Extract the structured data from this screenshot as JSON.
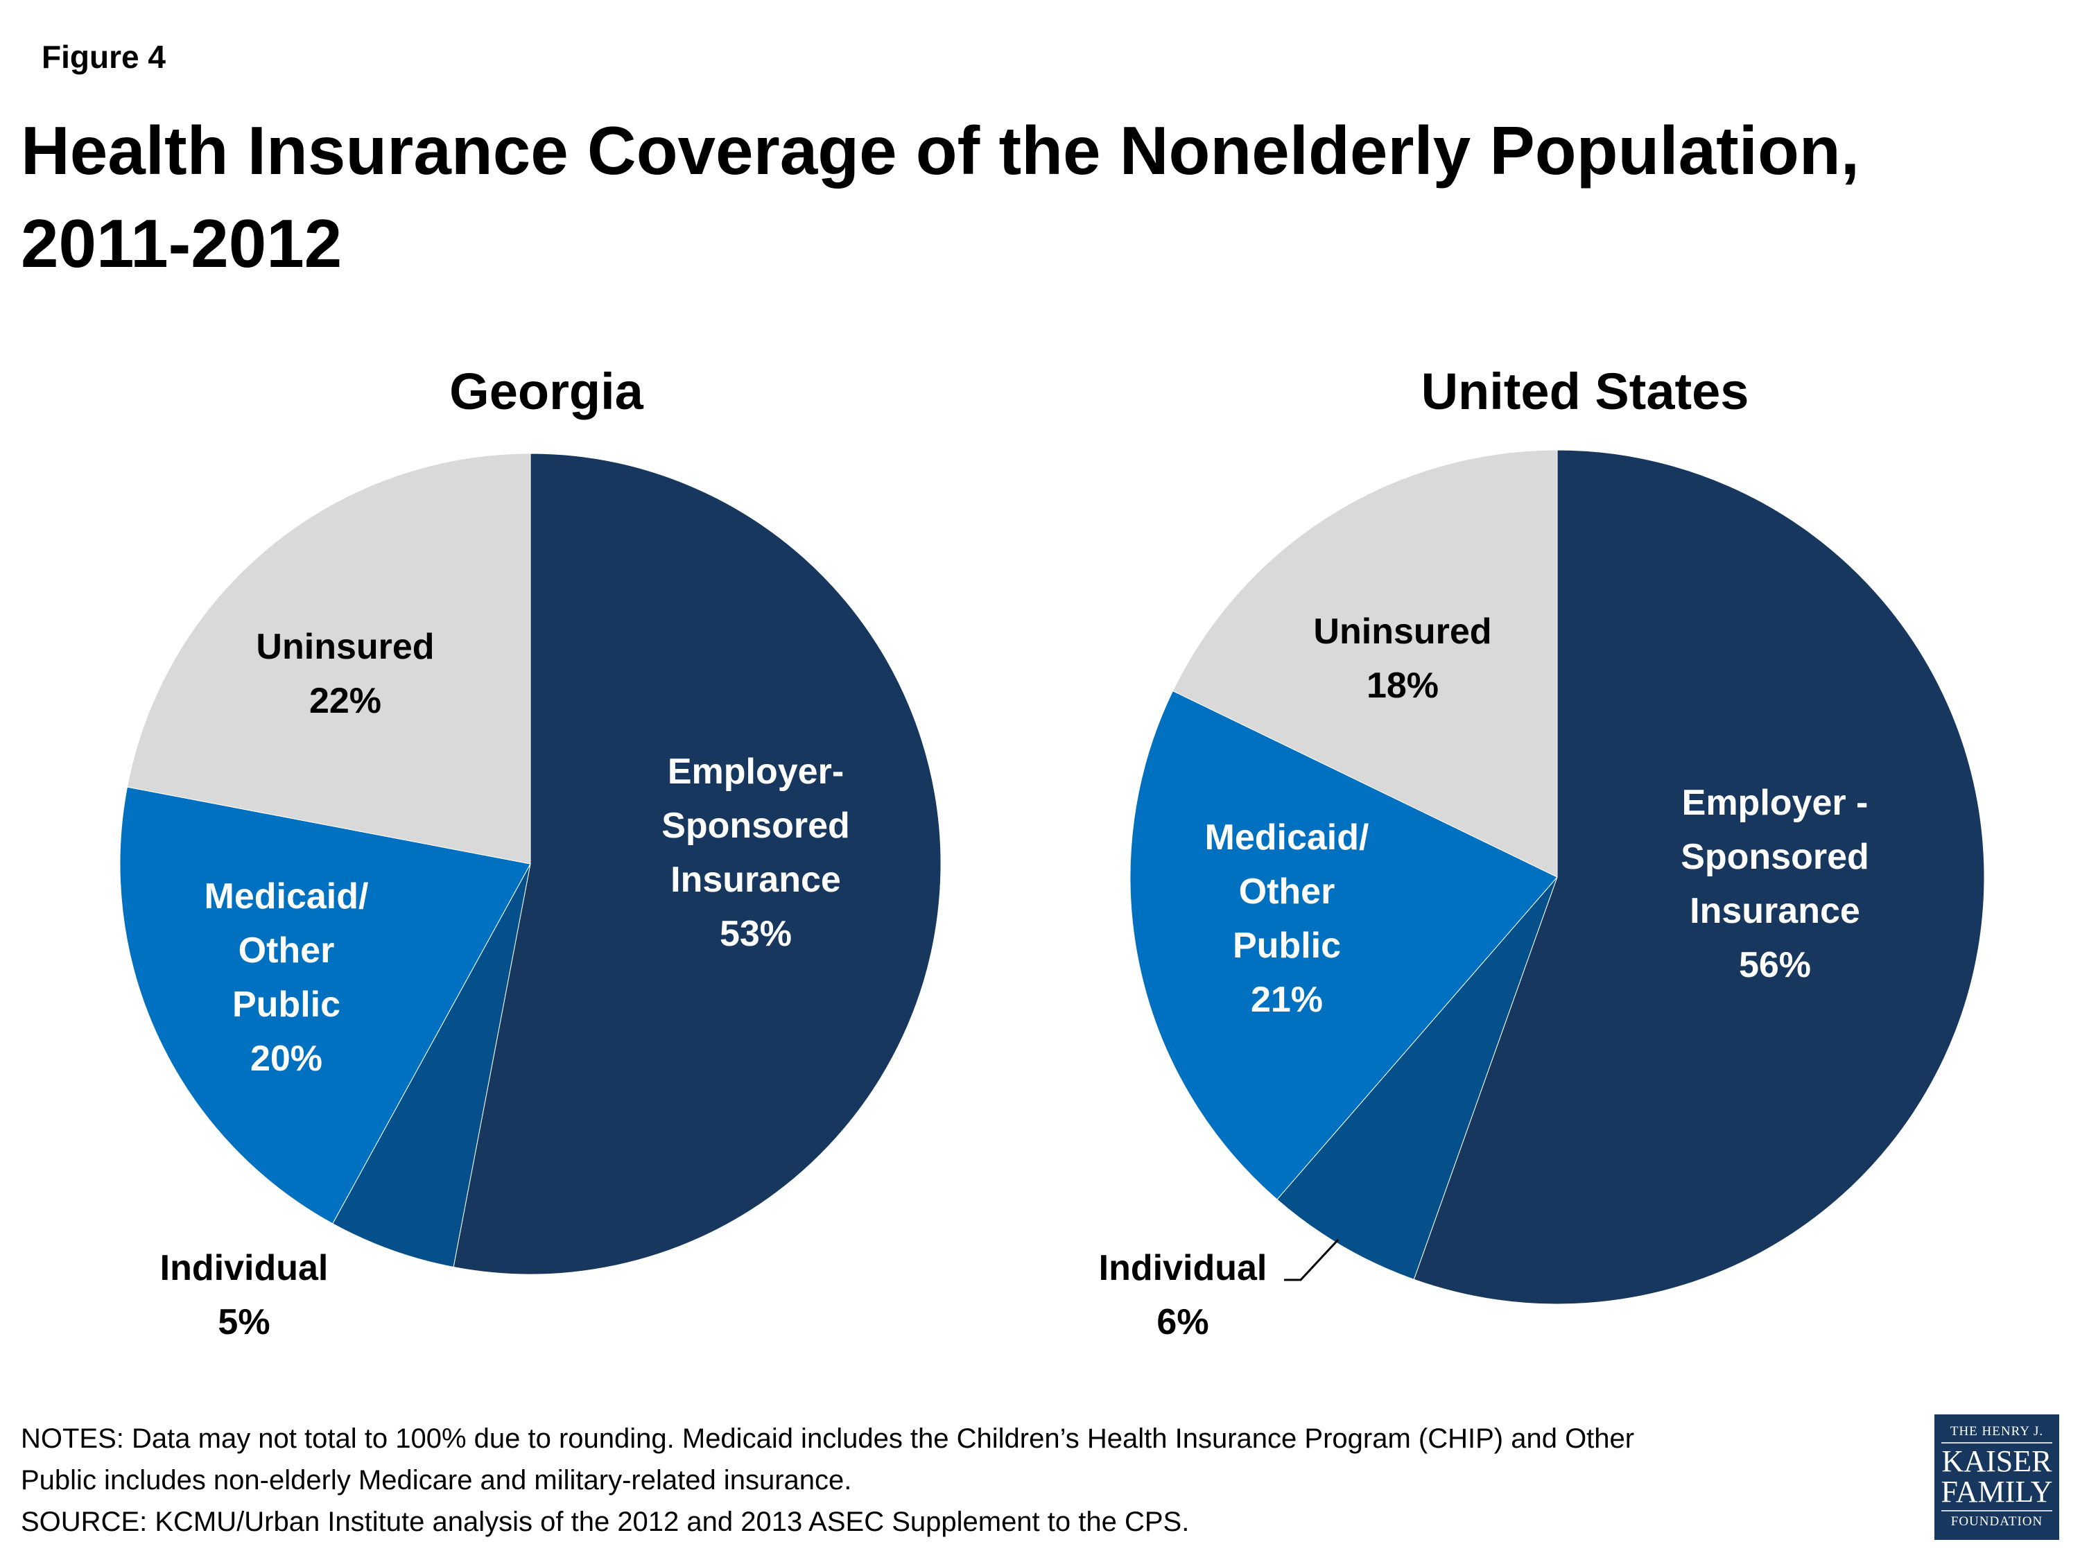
{
  "figure_label": "Figure 4",
  "title": "Health Insurance Coverage of the Nonelderly Population, 2011-2012",
  "chart_data": [
    {
      "type": "pie",
      "title": "Georgia",
      "slices": [
        {
          "name": "Employer-Sponsored Insurance",
          "lines": [
            "Employer-",
            "Sponsored",
            "Insurance"
          ],
          "value": 53,
          "label": "53%",
          "color": "#17375e"
        },
        {
          "name": "Individual",
          "lines": [
            "Individual"
          ],
          "value": 5,
          "label": "5%",
          "color": "#05508a"
        },
        {
          "name": "Medicaid/Other Public",
          "lines": [
            "Medicaid/",
            "Other",
            "Public"
          ],
          "value": 20,
          "label": "20%",
          "color": "#0070c0"
        },
        {
          "name": "Uninsured",
          "lines": [
            "Uninsured"
          ],
          "value": 22,
          "label": "22%",
          "color": "#d9d9d9"
        }
      ]
    },
    {
      "type": "pie",
      "title": "United States",
      "slices": [
        {
          "name": "Employer-Sponsored Insurance",
          "lines": [
            "Employer -",
            "Sponsored",
            "Insurance"
          ],
          "value": 56,
          "label": "56%",
          "color": "#17375e"
        },
        {
          "name": "Individual",
          "lines": [
            "Individual"
          ],
          "value": 6,
          "label": "6%",
          "color": "#05508a"
        },
        {
          "name": "Medicaid/Other Public",
          "lines": [
            "Medicaid/",
            "Other",
            "Public"
          ],
          "value": 21,
          "label": "21%",
          "color": "#0070c0"
        },
        {
          "name": "Uninsured",
          "lines": [
            "Uninsured"
          ],
          "value": 18,
          "label": "18%",
          "color": "#d9d9d9"
        }
      ]
    }
  ],
  "notes": [
    "NOTES: Data may not total to 100% due to rounding. Medicaid includes the Children’s Health Insurance Program (CHIP) and Other",
    "Public includes non-elderly Medicare and military-related insurance.",
    "SOURCE: KCMU/Urban Institute analysis of the 2012 and 2013 ASEC Supplement to the CPS."
  ],
  "logo": {
    "line1": "THE HENRY J.",
    "line2": "KAISER",
    "line3": "FAMILY",
    "line4": "FOUNDATION"
  }
}
